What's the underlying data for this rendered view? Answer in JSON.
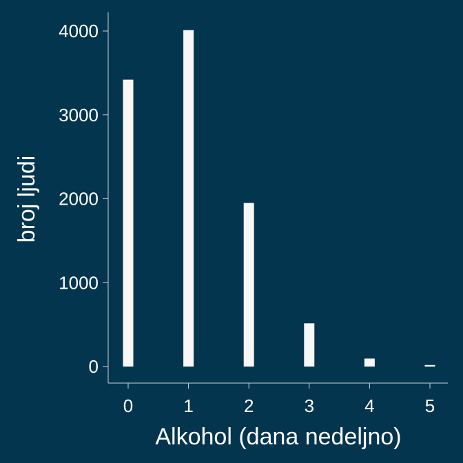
{
  "chart_data": {
    "type": "bar",
    "title": "",
    "xlabel": "Alkohol (dana nedeljno)",
    "ylabel": "broj ljudi",
    "categories": [
      "0",
      "1",
      "2",
      "3",
      "4",
      "5"
    ],
    "x": [
      0,
      1,
      2,
      3,
      4,
      5
    ],
    "values": [
      3420,
      4010,
      1950,
      515,
      95,
      18
    ],
    "ylim": [
      0,
      4200
    ],
    "xlim": [
      -0.35,
      5.35
    ],
    "yticks": [
      0,
      1000,
      2000,
      3000,
      4000
    ],
    "ytick_labels": [
      "0",
      "1000",
      "2000",
      "3000",
      "4000"
    ],
    "xticks": [
      0,
      1,
      2,
      3,
      4,
      5
    ],
    "xtick_labels": [
      "0",
      "1",
      "2",
      "3",
      "4",
      "5"
    ],
    "grid": false,
    "legend": "none",
    "colors": {
      "background": "#04354e",
      "bar": "#f7f7f7",
      "axis": "#c8d2d8",
      "text": "#ffffff"
    }
  }
}
